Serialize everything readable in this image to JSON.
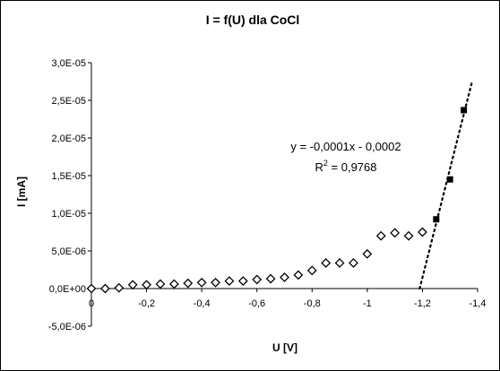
{
  "chart_data": {
    "type": "scatter",
    "title": "I = f(U) dla CoCl",
    "xlabel": "U [V]",
    "ylabel": "I [mA]",
    "x_reversed": true,
    "xlim": [
      0,
      -1.4
    ],
    "ylim": [
      -5e-06,
      3e-05
    ],
    "x_ticks": [
      0,
      -0.2,
      -0.4,
      -0.6,
      -0.8,
      -1,
      -1.2,
      -1.4
    ],
    "x_tick_labels": [
      "0",
      "-0,2",
      "-0,4",
      "-0,6",
      "-0,8",
      "-1",
      "-1,2",
      "-1,4"
    ],
    "y_ticks": [
      -5e-06,
      0,
      5e-06,
      1e-05,
      1.5e-05,
      2e-05,
      2.5e-05,
      3e-05
    ],
    "y_tick_labels": [
      "-5,0E-06",
      "0,0E+00",
      "5,0E-06",
      "1,0E-05",
      "1,5E-05",
      "2,0E-05",
      "2,5E-05",
      "3,0E-05"
    ],
    "grid": false,
    "series": [
      {
        "marker": "diamond-open",
        "color": "#000000",
        "points": [
          [
            0,
            0
          ],
          [
            -0.05,
            0
          ],
          [
            -0.1,
            1e-07
          ],
          [
            -0.15,
            5e-07
          ],
          [
            -0.2,
            5e-07
          ],
          [
            -0.25,
            6e-07
          ],
          [
            -0.3,
            6e-07
          ],
          [
            -0.35,
            7e-07
          ],
          [
            -0.4,
            8e-07
          ],
          [
            -0.45,
            8e-07
          ],
          [
            -0.5,
            1e-06
          ],
          [
            -0.55,
            1e-06
          ],
          [
            -0.6,
            1.2e-06
          ],
          [
            -0.65,
            1.3e-06
          ],
          [
            -0.7,
            1.5e-06
          ],
          [
            -0.75,
            1.8e-06
          ],
          [
            -0.8,
            2.4e-06
          ],
          [
            -0.85,
            3.4e-06
          ],
          [
            -0.9,
            3.4e-06
          ],
          [
            -0.95,
            3.4e-06
          ],
          [
            -1.0,
            4.6e-06
          ],
          [
            -1.05,
            7e-06
          ],
          [
            -1.1,
            7.4e-06
          ],
          [
            -1.15,
            7e-06
          ],
          [
            -1.2,
            7.5e-06
          ]
        ]
      },
      {
        "marker": "square-filled",
        "color": "#000000",
        "points": [
          [
            -1.25,
            9.2e-06
          ],
          [
            -1.3,
            1.45e-05
          ],
          [
            -1.35,
            2.37e-05
          ]
        ]
      }
    ],
    "trendline": {
      "style": "dotted",
      "color": "#000000",
      "from": [
        -1.19,
        0
      ],
      "to": [
        -1.38,
        2.75e-05
      ]
    },
    "annotations": {
      "equation": "y = -0,0001x - 0,0002",
      "r_squared_prefix": "R",
      "r_squared_exponent": "2",
      "r_squared_suffix": " = 0,9768"
    }
  }
}
